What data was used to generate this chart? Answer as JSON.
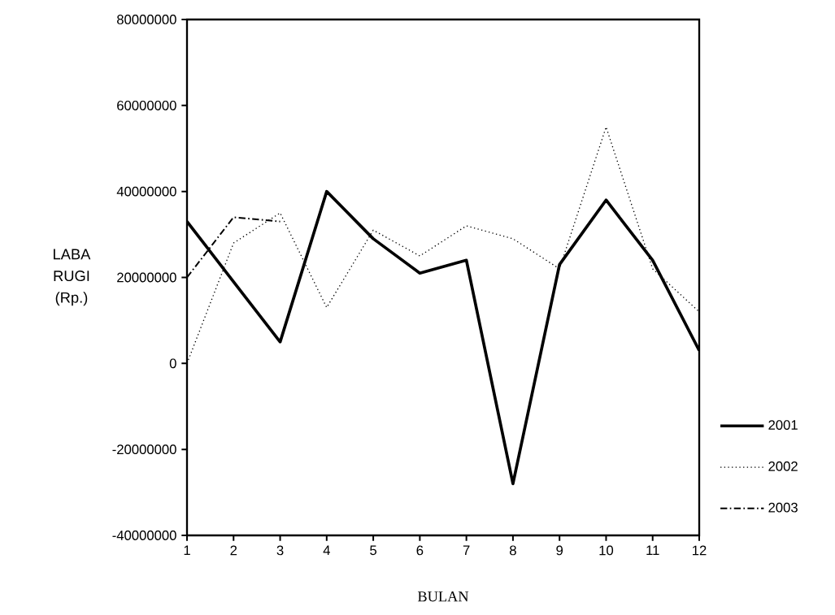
{
  "chart_data": {
    "type": "line",
    "xlabel": "BULAN",
    "ylabel": "LABA RUGI (Rp.)",
    "x": [
      1,
      2,
      3,
      4,
      5,
      6,
      7,
      8,
      9,
      10,
      11,
      12
    ],
    "xlim": [
      1,
      12
    ],
    "xticks": [
      1,
      2,
      3,
      4,
      5,
      6,
      7,
      8,
      9,
      10,
      11,
      12
    ],
    "ylim": [
      -40000000,
      80000000
    ],
    "yticks": [
      -40000000,
      -20000000,
      0,
      20000000,
      40000000,
      60000000,
      80000000
    ],
    "series": [
      {
        "name": "2001",
        "color": "#000000",
        "line_style": "solid",
        "values": [
          33000000,
          19000000,
          5000000,
          40000000,
          29000000,
          21000000,
          24000000,
          -28000000,
          23000000,
          38000000,
          24000000,
          3000000
        ]
      },
      {
        "name": "2002",
        "color": "#000000",
        "line_style": "dotted",
        "values": [
          0,
          28000000,
          35000000,
          13000000,
          31000000,
          25000000,
          32000000,
          29000000,
          22000000,
          55000000,
          22000000,
          12000000
        ]
      },
      {
        "name": "2003",
        "color": "#000000",
        "line_style": "dashdotted",
        "values": [
          20000000,
          34000000,
          33000000,
          null,
          null,
          null,
          null,
          null,
          null,
          null,
          null,
          null
        ]
      }
    ],
    "grid": false,
    "legend": "right"
  }
}
